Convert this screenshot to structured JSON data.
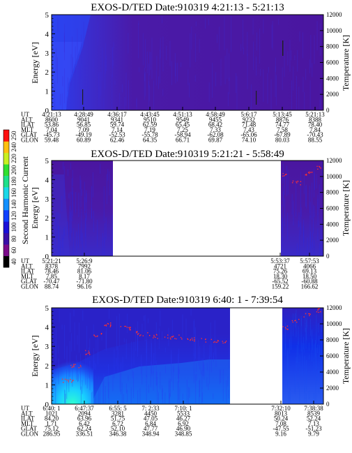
{
  "colorbar": {
    "label": "Second Harmonic Current",
    "ticks": [
      "40",
      "60",
      "80",
      "100",
      "120",
      "140",
      "160",
      "180",
      "200",
      "220",
      "240",
      "250"
    ],
    "colors": [
      "#000000",
      "#7a0a8a",
      "#3a0fa8",
      "#1a10d8",
      "#1040ff",
      "#1290ff",
      "#19d8e8",
      "#1ee08a",
      "#30e030",
      "#c8f020",
      "#ffc010",
      "#ff1010"
    ]
  },
  "chart_data": [
    {
      "type": "heatmap",
      "title": "EXOS-D/TED   Date:910319   4:21:13 - 5:21:13",
      "ylabel": "Energy [eV]",
      "ylim": [
        0,
        5
      ],
      "y_ticks": [
        "0",
        "1",
        "2",
        "3",
        "4",
        "5"
      ],
      "y2label": "Temperature [K]",
      "y2lim": [
        0,
        12000
      ],
      "y2_ticks": [
        "0",
        "2000",
        "4000",
        "6000",
        "8000",
        "10000",
        "12000"
      ],
      "row_labels": [
        "UT",
        "ALT",
        "ILAT",
        "MLT",
        "GLAT",
        "GLON"
      ],
      "columns": [
        [
          "4:21:13",
          "8600",
          "53.86",
          "7.04",
          "-45.73",
          "59.48"
        ],
        [
          "4:28:49",
          "9041",
          "56.85",
          "7.09",
          "-49.19",
          "60.89"
        ],
        [
          "4:36:17",
          "9341",
          "59.74",
          "7.14",
          "-52.53",
          "62.46"
        ],
        [
          "4:43:45",
          "9510",
          "62.59",
          "7.19",
          "-55.78",
          "64.35"
        ],
        [
          "4:51:13",
          "9549",
          "65.45",
          "7.25",
          "-58.94",
          "66.71"
        ],
        [
          "4:58:49",
          "9455",
          "68.42",
          "7.33",
          "-62.08",
          "69.87"
        ],
        [
          "5:6:17",
          "9232",
          "71.48",
          "7.43",
          "-65.06",
          "74.10"
        ],
        [
          "5:13:45",
          "8876",
          "74.77",
          "7.58",
          "-67.89",
          "80.03"
        ],
        [
          "5:21:13",
          "8388",
          "78.40",
          "7.84",
          "-70.43",
          "88.55"
        ]
      ],
      "data_gaps": []
    },
    {
      "type": "heatmap",
      "title": "EXOS-D/TED   Date:910319   5:21:21 - 5:58:49",
      "ylabel": "Energy [eV]",
      "ylim": [
        0,
        5
      ],
      "y_ticks": [
        "0",
        "1",
        "2",
        "3",
        "4",
        "5"
      ],
      "y2label": "Temperature [K]",
      "y2lim": [
        0,
        12000
      ],
      "y2_ticks": [
        "0",
        "2000",
        "4000",
        "6000",
        "8000",
        "10000",
        "12000"
      ],
      "row_labels": [
        "UT",
        "ALT",
        "ILAT",
        "MLT",
        "GLAT",
        "GLON"
      ],
      "columns": [
        [
          "5:21:21",
          "8378",
          "78.46",
          "7.85",
          "-70.47",
          "88.74"
        ],
        [
          "5:26:9",
          "7992",
          "81.06",
          "8.17",
          "-71.80",
          "96.16"
        ],
        [
          "5:53:37",
          "4721",
          "75.26",
          "18.30",
          "-65.52",
          "159.22"
        ],
        [
          "5:57:53",
          "4066",
          "69.13",
          "18.50",
          "-60.88",
          "166.62"
        ]
      ],
      "data_gaps": [
        [
          "5:26:9",
          "5:53:37"
        ]
      ]
    },
    {
      "type": "heatmap",
      "title": "EXOS-D/TED   Date:910319   6:40: 1 - 7:39:54",
      "ylabel": "Energy [eV]",
      "ylim": [
        0,
        5
      ],
      "y_ticks": [
        "0",
        "1",
        "2",
        "3",
        "4",
        "5"
      ],
      "y2label": "Temperature [K]",
      "y2lim": [
        0,
        12000
      ],
      "y2_ticks": [
        "0",
        "2000",
        "4000",
        "6000",
        "8000",
        "10000",
        "12000"
      ],
      "row_labels": [
        "UT",
        "ALT",
        "ILAT",
        "MLT",
        "GLAT",
        "GLON"
      ],
      "columns": [
        [
          "6:40: 1",
          "1021",
          "84.20",
          "1.71",
          "75.12",
          "286.95"
        ],
        [
          "6:47:37",
          "2094",
          "63.96",
          "6.42",
          "62.24",
          "336.51"
        ],
        [
          "6:55: 5",
          "3281",
          "51.75",
          "6.72",
          "52.10",
          "346.38"
        ],
        [
          "7: 2:33",
          "4450",
          "47.05",
          "6.84",
          "47.77",
          "348.94"
        ],
        [
          "7:10: 1",
          "5533",
          "46.27",
          "6.92",
          "46.90",
          "348.85"
        ],
        [
          "7:32:10",
          "8013",
          "50.24",
          "7.08",
          "-47.55",
          "9.16"
        ],
        [
          "7:38:38",
          "8539",
          "52.24",
          "7.13",
          "-51.23",
          "9.79"
        ]
      ],
      "data_gaps": [
        [
          "7:10: 1",
          "7:32:10"
        ]
      ]
    }
  ]
}
